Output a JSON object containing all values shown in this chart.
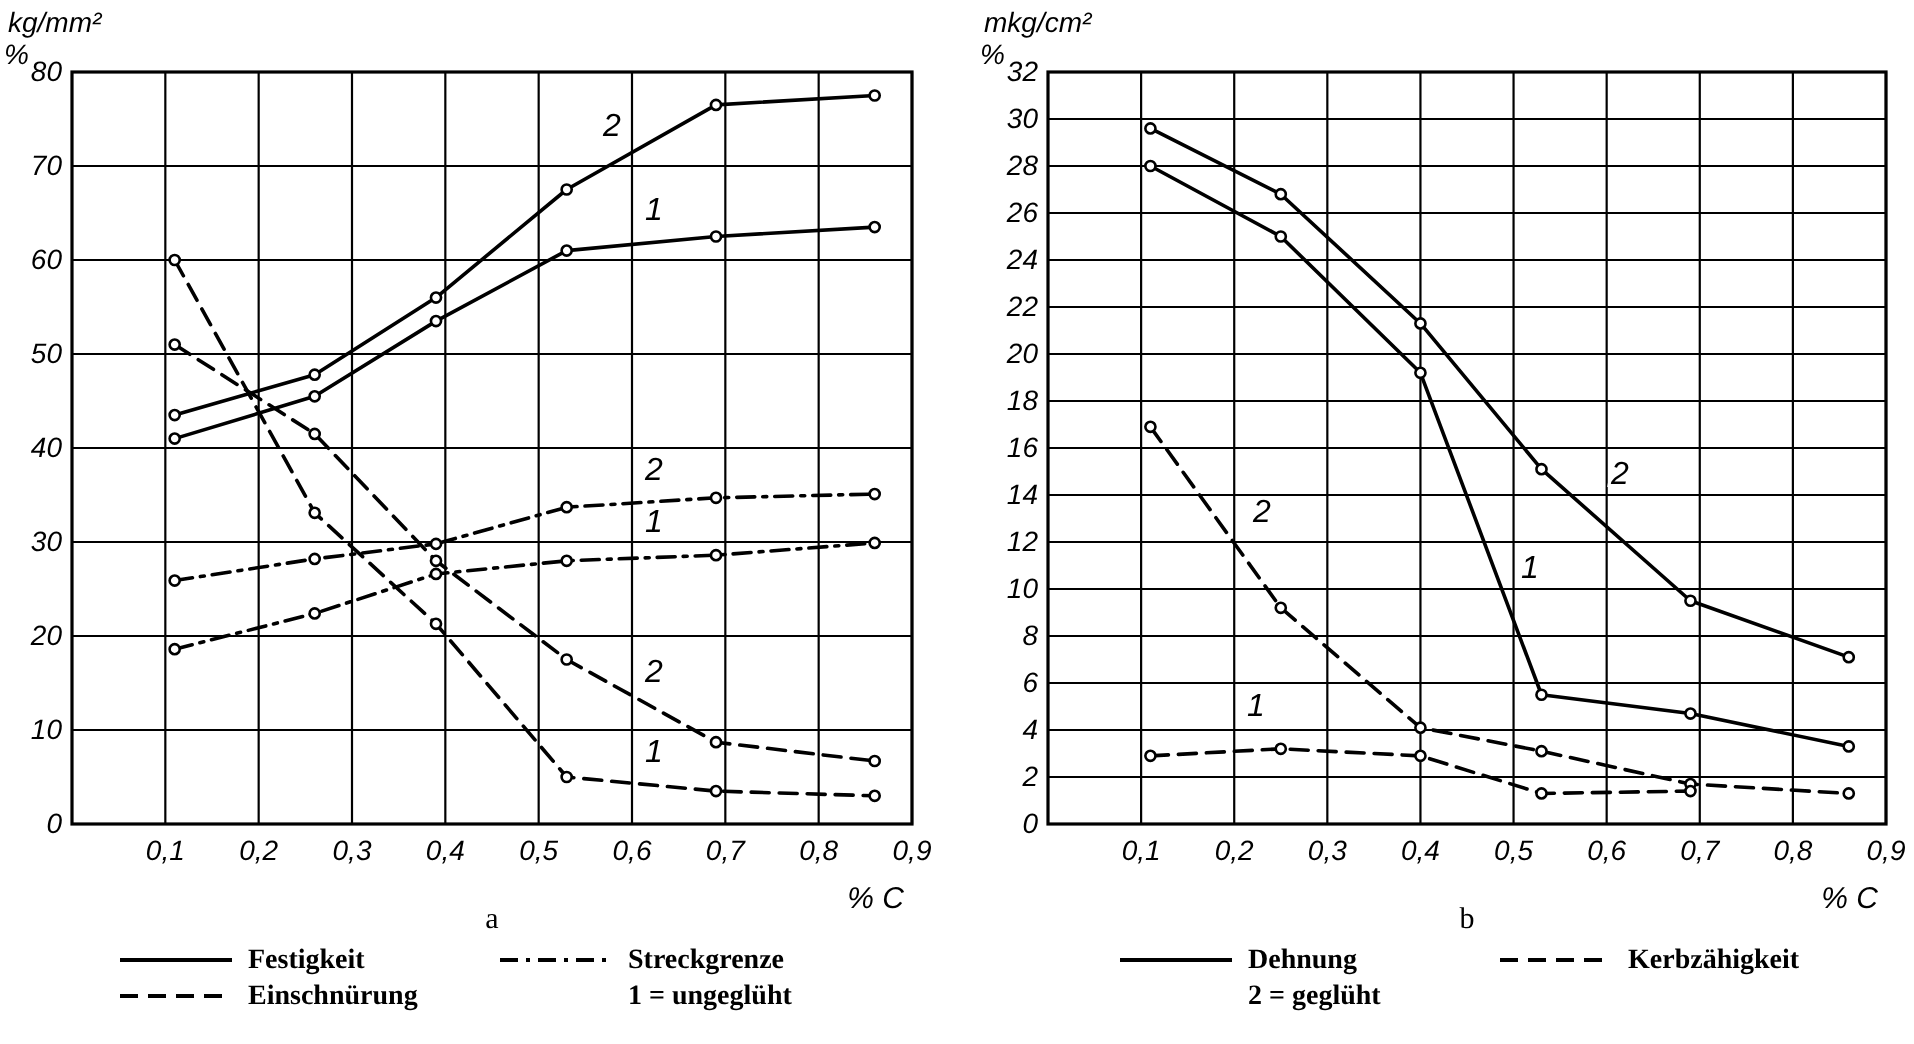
{
  "chart_data": [
    {
      "type": "line",
      "title": "a",
      "xlabel": "% C",
      "ylabel": "kg/mm²\n%",
      "x": [
        0.11,
        0.26,
        0.39,
        0.53,
        0.69,
        0.86
      ],
      "series": [
        {
          "name": "Festigkeit",
          "color": "#000000",
          "line_style": "solid",
          "values": [
            43.5,
            47.8,
            56,
            67.5,
            76.5,
            77.5
          ]
        },
        {
          "color": "#000000",
          "line_style": "solid",
          "values": [
            41,
            45.5,
            53.5,
            61,
            62.5,
            63.5
          ]
        },
        {
          "name": "Streckgrenze",
          "color": "#000000",
          "line_style": "dashdot",
          "values": [
            25.9,
            28.2,
            29.8,
            33.7,
            34.7,
            35.1
          ]
        },
        {
          "color": "#000000",
          "line_style": "dashdot",
          "values": [
            18.6,
            22.4,
            26.6,
            28,
            28.6,
            29.9
          ]
        },
        {
          "name": "Einschnürung",
          "color": "#000000",
          "line_style": "dashed",
          "values": [
            51,
            41.5,
            28,
            17.5,
            8.7,
            6.7
          ]
        },
        {
          "color": "#000000",
          "line_style": "dashed",
          "values": [
            60,
            33.1,
            21.3,
            5,
            3.5,
            3
          ]
        }
      ],
      "xlim": [
        0,
        0.9
      ],
      "xticks": [
        {
          "value": 0.1,
          "label": "0,1"
        },
        {
          "value": 0.2,
          "label": "0,2"
        },
        {
          "value": 0.3,
          "label": "0,3"
        },
        {
          "value": 0.4,
          "label": "0,4"
        },
        {
          "value": 0.5,
          "label": "0,5"
        },
        {
          "value": 0.6,
          "label": "0,6"
        },
        {
          "value": 0.7,
          "label": "0,7"
        },
        {
          "value": 0.8,
          "label": "0,8"
        },
        {
          "value": 0.9,
          "label": "0,9"
        }
      ],
      "ylim": [
        0,
        80
      ],
      "yticks": [
        0,
        10,
        20,
        30,
        40,
        50,
        60,
        70,
        80
      ],
      "grid": true,
      "marker": "circle",
      "legend": "bottom",
      "annotations": [
        "2",
        "1",
        "2",
        "1",
        "2",
        "1",
        "1 = ungeglüht"
      ]
    },
    {
      "type": "line",
      "title": "b",
      "xlabel": "% C",
      "ylabel": "mkg/cm²\n%",
      "x": [
        0.11,
        0.25,
        0.4,
        0.53,
        0.69,
        0.86
      ],
      "series": [
        {
          "name": "Dehnung",
          "color": "#000000",
          "line_style": "solid",
          "values": [
            29.6,
            26.8,
            21.3,
            15.1,
            9.5,
            7.1
          ]
        },
        {
          "color": "#000000",
          "line_style": "solid",
          "values": [
            28,
            25,
            19.2,
            5.5,
            4.7,
            3.3
          ]
        },
        {
          "name": "Kerbzähigkeit",
          "color": "#000000",
          "line_style": "dashed",
          "values": [
            16.9,
            9.2,
            4.1,
            3.1,
            1.7,
            1.3
          ]
        },
        {
          "color": "#000000",
          "line_style": "dashed",
          "x": [
            0.11,
            0.25,
            0.4,
            0.53,
            0.69
          ],
          "values": [
            2.9,
            3.2,
            2.9,
            1.3,
            1.4
          ]
        }
      ],
      "xlim": [
        0,
        0.9
      ],
      "xticks": [
        {
          "value": 0.1,
          "label": "0,1"
        },
        {
          "value": 0.2,
          "label": "0,2"
        },
        {
          "value": 0.3,
          "label": "0,3"
        },
        {
          "value": 0.4,
          "label": "0,4"
        },
        {
          "value": 0.5,
          "label": "0,5"
        },
        {
          "value": 0.6,
          "label": "0,6"
        },
        {
          "value": 0.7,
          "label": "0,7"
        },
        {
          "value": 0.8,
          "label": "0,8"
        },
        {
          "value": 0.9,
          "label": "0,9"
        }
      ],
      "ylim": [
        0,
        32
      ],
      "yticks": [
        0,
        2,
        4,
        6,
        8,
        10,
        12,
        14,
        16,
        18,
        20,
        22,
        24,
        26,
        28,
        30,
        32
      ],
      "grid": true,
      "marker": "circle",
      "legend": "bottom",
      "annotations": [
        "2",
        "1",
        "2",
        "1",
        "2 = geglüht"
      ]
    }
  ]
}
